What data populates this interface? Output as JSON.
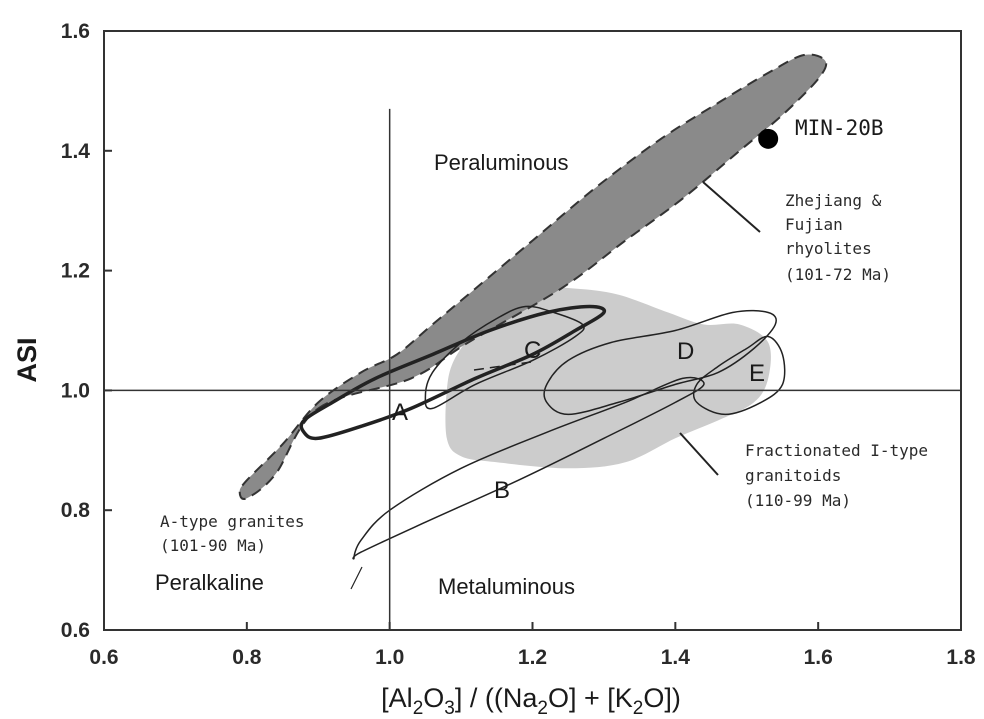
{
  "chart_data": {
    "type": "scatter",
    "xlabel_parts": [
      "[Al",
      "2",
      "O",
      "3",
      "] / ((Na",
      "2",
      "O]  +  [K",
      "2",
      "O])"
    ],
    "ylabel": "ASI",
    "xlim": [
      0.6,
      1.8
    ],
    "ylim": [
      0.6,
      1.6
    ],
    "x_ticks": [
      "0.6",
      "0.8",
      "1.0",
      "1.2",
      "1.4",
      "1.6",
      "1.8"
    ],
    "y_ticks": [
      "0.6",
      "0.8",
      "1.0",
      "1.2",
      "1.4",
      "1.6"
    ],
    "reference_lines": {
      "x": 1.0,
      "y": 1.0
    },
    "grid": false,
    "region_labels": {
      "peraluminous": "Peraluminous",
      "peralkaline": "Peralkaline",
      "metaluminous": "Metaluminous"
    },
    "fields": [
      {
        "id": "A",
        "label": "A",
        "style": "outline-bold"
      },
      {
        "id": "B",
        "label": "B",
        "style": "outline"
      },
      {
        "id": "C",
        "label": "C",
        "style": "outline"
      },
      {
        "id": "D",
        "label": "D",
        "style": "outline"
      },
      {
        "id": "E",
        "label": "E",
        "style": "outline"
      }
    ],
    "shaded_fields": [
      {
        "name": "Zhejiang & Fujian rhyolites",
        "color": "#8a8a8a",
        "border": "dashed",
        "polygon": [
          [
            0.9,
            0.97
          ],
          [
            1.03,
            1.02
          ],
          [
            1.11,
            1.08
          ],
          [
            1.24,
            1.17
          ],
          [
            1.33,
            1.25
          ],
          [
            1.41,
            1.32
          ],
          [
            1.49,
            1.4
          ],
          [
            1.55,
            1.46
          ],
          [
            1.6,
            1.52
          ],
          [
            1.61,
            1.55
          ],
          [
            1.58,
            1.56
          ],
          [
            1.53,
            1.53
          ],
          [
            1.46,
            1.48
          ],
          [
            1.38,
            1.42
          ],
          [
            1.29,
            1.34
          ],
          [
            1.2,
            1.25
          ],
          [
            1.12,
            1.17
          ],
          [
            1.06,
            1.11
          ],
          [
            1.01,
            1.06
          ],
          [
            0.96,
            1.03
          ],
          [
            0.9,
            0.98
          ],
          [
            0.85,
            0.91
          ],
          [
            0.8,
            0.85
          ],
          [
            0.79,
            0.83
          ],
          [
            0.8,
            0.82
          ],
          [
            0.84,
            0.86
          ]
        ]
      },
      {
        "name": "Fractionated I-type granitoids",
        "color": "#cccccc",
        "border": "none",
        "polygon": [
          [
            1.08,
            0.92
          ],
          [
            1.1,
            0.89
          ],
          [
            1.15,
            0.88
          ],
          [
            1.25,
            0.87
          ],
          [
            1.33,
            0.88
          ],
          [
            1.4,
            0.92
          ],
          [
            1.46,
            0.95
          ],
          [
            1.51,
            0.98
          ],
          [
            1.53,
            1.02
          ],
          [
            1.53,
            1.08
          ],
          [
            1.49,
            1.11
          ],
          [
            1.44,
            1.11
          ],
          [
            1.39,
            1.13
          ],
          [
            1.32,
            1.16
          ],
          [
            1.26,
            1.17
          ],
          [
            1.21,
            1.17
          ],
          [
            1.16,
            1.14
          ],
          [
            1.12,
            1.1
          ],
          [
            1.09,
            1.05
          ],
          [
            1.08,
            1.0
          ]
        ]
      }
    ],
    "outlines": [
      {
        "id": "A",
        "polygon": [
          [
            0.9,
            0.92
          ],
          [
            0.96,
            0.94
          ],
          [
            1.03,
            0.97
          ],
          [
            1.12,
            1.02
          ],
          [
            1.2,
            1.06
          ],
          [
            1.26,
            1.1
          ],
          [
            1.3,
            1.13
          ],
          [
            1.28,
            1.14
          ],
          [
            1.22,
            1.13
          ],
          [
            1.14,
            1.1
          ],
          [
            1.06,
            1.06
          ],
          [
            0.98,
            1.02
          ],
          [
            0.92,
            0.98
          ],
          [
            0.88,
            0.95
          ],
          [
            0.88,
            0.93
          ]
        ]
      },
      {
        "id": "C",
        "polygon": [
          [
            1.06,
            0.97
          ],
          [
            1.12,
            1.01
          ],
          [
            1.2,
            1.05
          ],
          [
            1.26,
            1.09
          ],
          [
            1.27,
            1.11
          ],
          [
            1.23,
            1.13
          ],
          [
            1.19,
            1.14
          ],
          [
            1.15,
            1.12
          ],
          [
            1.1,
            1.08
          ],
          [
            1.06,
            1.03
          ],
          [
            1.05,
            0.99
          ]
        ]
      },
      {
        "id": "D",
        "polygon": [
          [
            1.22,
            0.98
          ],
          [
            1.25,
            0.96
          ],
          [
            1.32,
            0.98
          ],
          [
            1.4,
            1.01
          ],
          [
            1.46,
            1.03
          ],
          [
            1.51,
            1.07
          ],
          [
            1.54,
            1.11
          ],
          [
            1.53,
            1.13
          ],
          [
            1.48,
            1.13
          ],
          [
            1.4,
            1.1
          ],
          [
            1.31,
            1.08
          ],
          [
            1.25,
            1.05
          ],
          [
            1.22,
            1.01
          ]
        ]
      },
      {
        "id": "E",
        "polygon": [
          [
            1.43,
            0.98
          ],
          [
            1.47,
            0.96
          ],
          [
            1.52,
            0.98
          ],
          [
            1.55,
            1.01
          ],
          [
            1.55,
            1.06
          ],
          [
            1.53,
            1.09
          ],
          [
            1.5,
            1.07
          ],
          [
            1.46,
            1.04
          ],
          [
            1.43,
            1.01
          ]
        ]
      },
      {
        "id": "B",
        "polygon": [
          [
            0.96,
            0.73
          ],
          [
            1.05,
            0.78
          ],
          [
            1.18,
            0.85
          ],
          [
            1.3,
            0.92
          ],
          [
            1.4,
            0.98
          ],
          [
            1.44,
            1.01
          ],
          [
            1.41,
            1.02
          ],
          [
            1.33,
            0.98
          ],
          [
            1.22,
            0.93
          ],
          [
            1.1,
            0.87
          ],
          [
            1.0,
            0.8
          ],
          [
            0.96,
            0.75
          ],
          [
            0.95,
            0.72
          ]
        ]
      }
    ],
    "points": [
      {
        "name": "MIN-20B",
        "label": "MIN-20B",
        "x": 1.53,
        "y": 1.42
      }
    ],
    "annotations": {
      "rhyolites": [
        "Zhejiang &",
        "Fujian",
        "rhyolites",
        "(101-72 Ma)"
      ],
      "granitoids": [
        "Fractionated  I-type",
        "granitoids",
        "(110-99 Ma)"
      ],
      "a_type": [
        "A-type granites",
        "(101-90 Ma)"
      ]
    }
  }
}
